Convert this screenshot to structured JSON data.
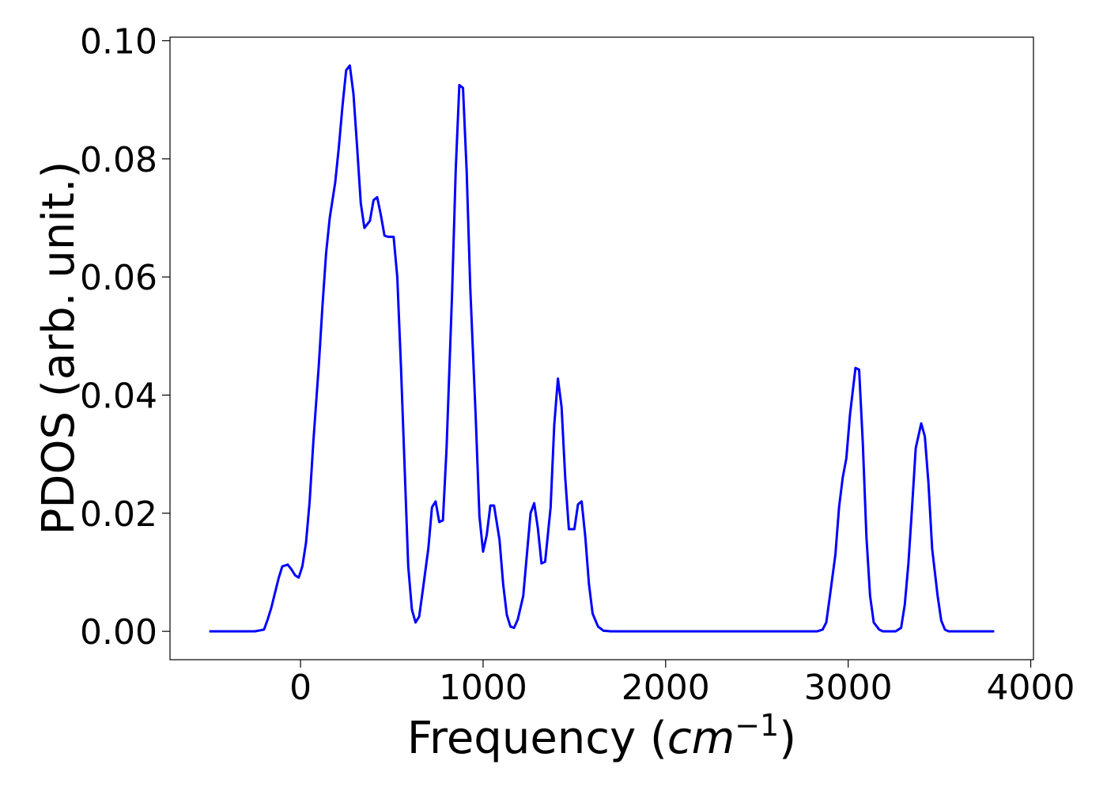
{
  "chart_data": {
    "type": "line",
    "xlabel_parts": [
      "Frequency (",
      "cm",
      "−1",
      ")"
    ],
    "ylabel": "PDOS (arb. unit.)",
    "color": "#0000ff",
    "x": [
      -500,
      -250,
      -200,
      -180,
      -160,
      -120,
      -100,
      -70,
      -50,
      -30,
      -10,
      10,
      30,
      50,
      70,
      100,
      120,
      140,
      160,
      190,
      210,
      230,
      250,
      270,
      290,
      310,
      330,
      350,
      380,
      400,
      420,
      440,
      460,
      480,
      510,
      530,
      550,
      570,
      590,
      610,
      630,
      650,
      670,
      700,
      720,
      740,
      760,
      780,
      800,
      830,
      850,
      870,
      890,
      910,
      930,
      960,
      980,
      1000,
      1020,
      1040,
      1060,
      1090,
      1110,
      1130,
      1150,
      1170,
      1190,
      1220,
      1240,
      1260,
      1280,
      1300,
      1320,
      1340,
      1370,
      1390,
      1410,
      1430,
      1450,
      1470,
      1500,
      1520,
      1540,
      1560,
      1580,
      1600,
      1630,
      1660,
      1700,
      2830,
      2860,
      2880,
      2900,
      2930,
      2950,
      2970,
      2990,
      3010,
      3040,
      3060,
      3080,
      3100,
      3120,
      3140,
      3170,
      3190,
      3260,
      3290,
      3310,
      3330,
      3350,
      3370,
      3400,
      3420,
      3440,
      3460,
      3490,
      3510,
      3530,
      3550,
      3800
    ],
    "values": [
      0,
      0,
      0.0003,
      0.002,
      0.004,
      0.009,
      0.011,
      0.0113,
      0.0105,
      0.0095,
      0.0091,
      0.011,
      0.015,
      0.022,
      0.032,
      0.045,
      0.055,
      0.064,
      0.07,
      0.076,
      0.082,
      0.089,
      0.095,
      0.0958,
      0.091,
      0.082,
      0.0725,
      0.0683,
      0.0695,
      0.073,
      0.0735,
      0.0705,
      0.067,
      0.0668,
      0.0668,
      0.06,
      0.045,
      0.028,
      0.011,
      0.0037,
      0.0015,
      0.0025,
      0.007,
      0.014,
      0.021,
      0.022,
      0.0185,
      0.0188,
      0.031,
      0.057,
      0.078,
      0.0925,
      0.092,
      0.078,
      0.058,
      0.036,
      0.0195,
      0.0135,
      0.0163,
      0.0213,
      0.0213,
      0.0155,
      0.008,
      0.0028,
      0.0008,
      0.0006,
      0.002,
      0.006,
      0.013,
      0.02,
      0.0217,
      0.0175,
      0.0115,
      0.0118,
      0.021,
      0.035,
      0.0428,
      0.038,
      0.026,
      0.0173,
      0.0173,
      0.0215,
      0.022,
      0.016,
      0.008,
      0.003,
      0.0008,
      0.0001,
      0,
      0,
      0.0003,
      0.0015,
      0.006,
      0.013,
      0.021,
      0.026,
      0.0293,
      0.0367,
      0.0446,
      0.0443,
      0.032,
      0.016,
      0.006,
      0.0015,
      0.0003,
      0,
      0,
      0.0006,
      0.0045,
      0.0115,
      0.021,
      0.031,
      0.0352,
      0.033,
      0.025,
      0.014,
      0.006,
      0.0018,
      0.0003,
      0,
      0
    ],
    "xlim": [
      -715,
      4015
    ],
    "ylim": [
      -0.0048,
      0.1006
    ],
    "xticks": [
      0,
      1000,
      2000,
      3000,
      4000
    ],
    "yticks": [
      {
        "value": 0,
        "label": "0.00"
      },
      {
        "value": 0.02,
        "label": "0.02"
      },
      {
        "value": 0.04,
        "label": "0.04"
      },
      {
        "value": 0.06,
        "label": "0.06"
      },
      {
        "value": 0.08,
        "label": "0.08"
      },
      {
        "value": 0.1,
        "label": "0.10"
      }
    ],
    "grid": false
  }
}
